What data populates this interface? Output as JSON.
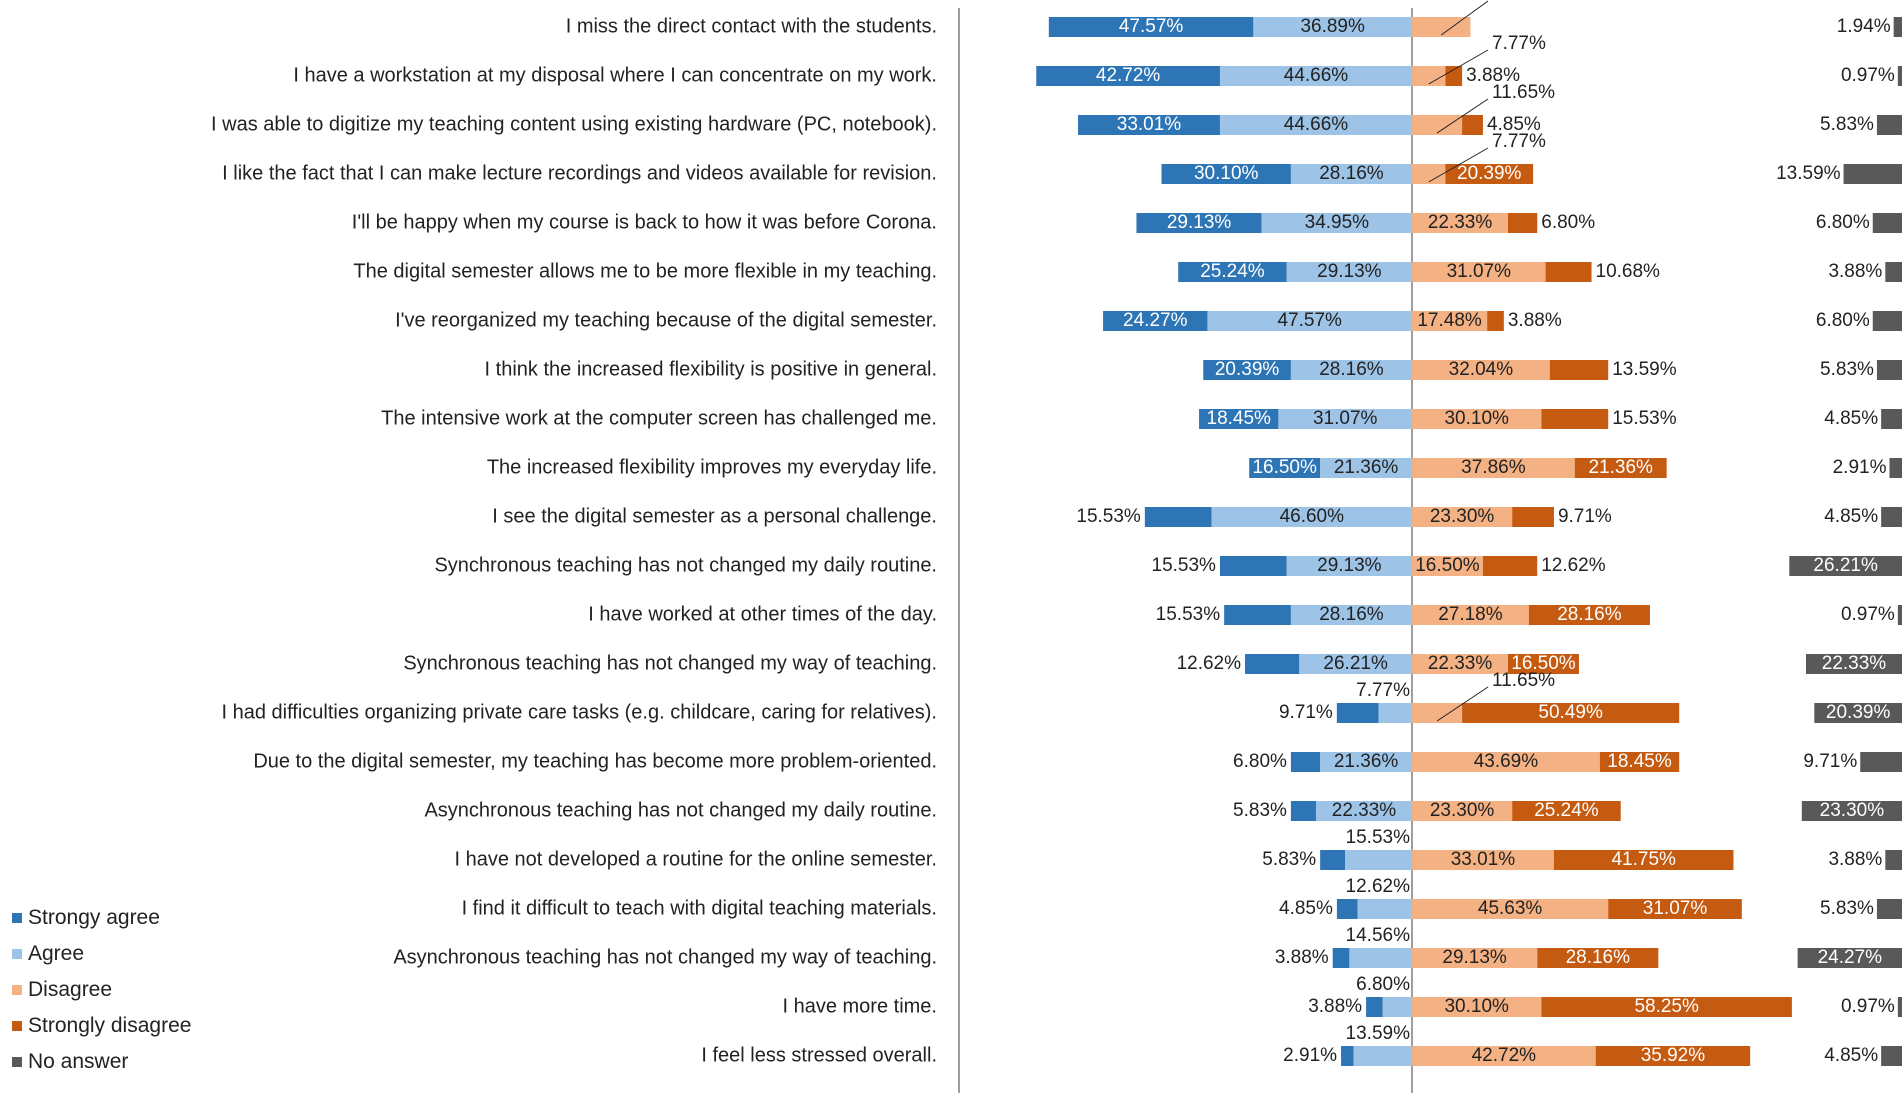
{
  "chart_data": {
    "type": "bar",
    "subtype": "diverging-stacked-horizontal",
    "legend_position": "bottom-left",
    "series": [
      {
        "name": "Strongy agree",
        "color": "#2e75b6"
      },
      {
        "name": "Agree",
        "color": "#9dc3e6"
      },
      {
        "name": "Disagree",
        "color": "#f4b183"
      },
      {
        "name": "Strongly disagree",
        "color": "#c55a11"
      },
      {
        "name": "No answer",
        "color": "#595959"
      }
    ],
    "rows": [
      {
        "label": "I miss the direct contact with the students.",
        "values": [
          47.57,
          36.89,
          13.59,
          0,
          1.94
        ]
      },
      {
        "label": "I have a workstation at my disposal where I can concentrate on my work.",
        "values": [
          42.72,
          44.66,
          7.77,
          3.88,
          0.97
        ]
      },
      {
        "label": "I was able to digitize my teaching content using existing hardware (PC, notebook).",
        "values": [
          33.01,
          44.66,
          11.65,
          4.85,
          5.83
        ]
      },
      {
        "label": "I like the fact that I can make lecture recordings and videos available for revision.",
        "values": [
          30.1,
          28.16,
          7.77,
          20.39,
          13.59
        ]
      },
      {
        "label": "I'll be happy when my course is back to how it was before Corona.",
        "values": [
          29.13,
          34.95,
          22.33,
          6.8,
          6.8
        ]
      },
      {
        "label": "The digital semester allows me to be more flexible in my teaching.",
        "values": [
          25.24,
          29.13,
          31.07,
          10.68,
          3.88
        ]
      },
      {
        "label": "I've reorganized my teaching because of the digital semester.",
        "values": [
          24.27,
          47.57,
          17.48,
          3.88,
          6.8
        ]
      },
      {
        "label": "I think the increased flexibility is positive in general.",
        "values": [
          20.39,
          28.16,
          32.04,
          13.59,
          5.83
        ]
      },
      {
        "label": "The intensive work at the computer screen has challenged me.",
        "values": [
          18.45,
          31.07,
          30.1,
          15.53,
          4.85
        ]
      },
      {
        "label": "The increased flexibility improves my everyday life.",
        "values": [
          16.5,
          21.36,
          37.86,
          21.36,
          2.91
        ]
      },
      {
        "label": "I see the digital semester as a personal challenge.",
        "values": [
          15.53,
          46.6,
          23.3,
          9.71,
          4.85
        ]
      },
      {
        "label": "Synchronous teaching has not changed my daily routine.",
        "values": [
          15.53,
          29.13,
          16.5,
          12.62,
          26.21
        ]
      },
      {
        "label": "I have worked at other times of the day.",
        "values": [
          15.53,
          28.16,
          27.18,
          28.16,
          0.97
        ]
      },
      {
        "label": "Synchronous teaching has not changed my way of teaching.",
        "values": [
          12.62,
          26.21,
          22.33,
          16.5,
          22.33
        ]
      },
      {
        "label": "I had difficulties organizing private care tasks (e.g. childcare, caring for relatives).",
        "values": [
          9.71,
          7.77,
          11.65,
          50.49,
          20.39
        ]
      },
      {
        "label": "Due to the digital semester, my teaching has become more problem-oriented.",
        "values": [
          6.8,
          21.36,
          43.69,
          18.45,
          9.71
        ]
      },
      {
        "label": "Asynchronous teaching has not changed my daily routine.",
        "values": [
          5.83,
          22.33,
          23.3,
          25.24,
          23.3
        ]
      },
      {
        "label": "I have not developed a routine for the online semester.",
        "values": [
          5.83,
          15.53,
          33.01,
          41.75,
          3.88
        ]
      },
      {
        "label": "I find it difficult to teach with digital teaching materials.",
        "values": [
          4.85,
          12.62,
          45.63,
          31.07,
          5.83
        ]
      },
      {
        "label": "Asynchronous teaching has not changed my way of teaching.",
        "values": [
          3.88,
          14.56,
          29.13,
          28.16,
          24.27
        ]
      },
      {
        "label": "I have more time.",
        "values": [
          3.88,
          6.8,
          30.1,
          58.25,
          0.97
        ]
      },
      {
        "label": "I feel less stressed overall.",
        "values": [
          2.91,
          13.59,
          42.72,
          35.92,
          4.85
        ]
      }
    ]
  }
}
